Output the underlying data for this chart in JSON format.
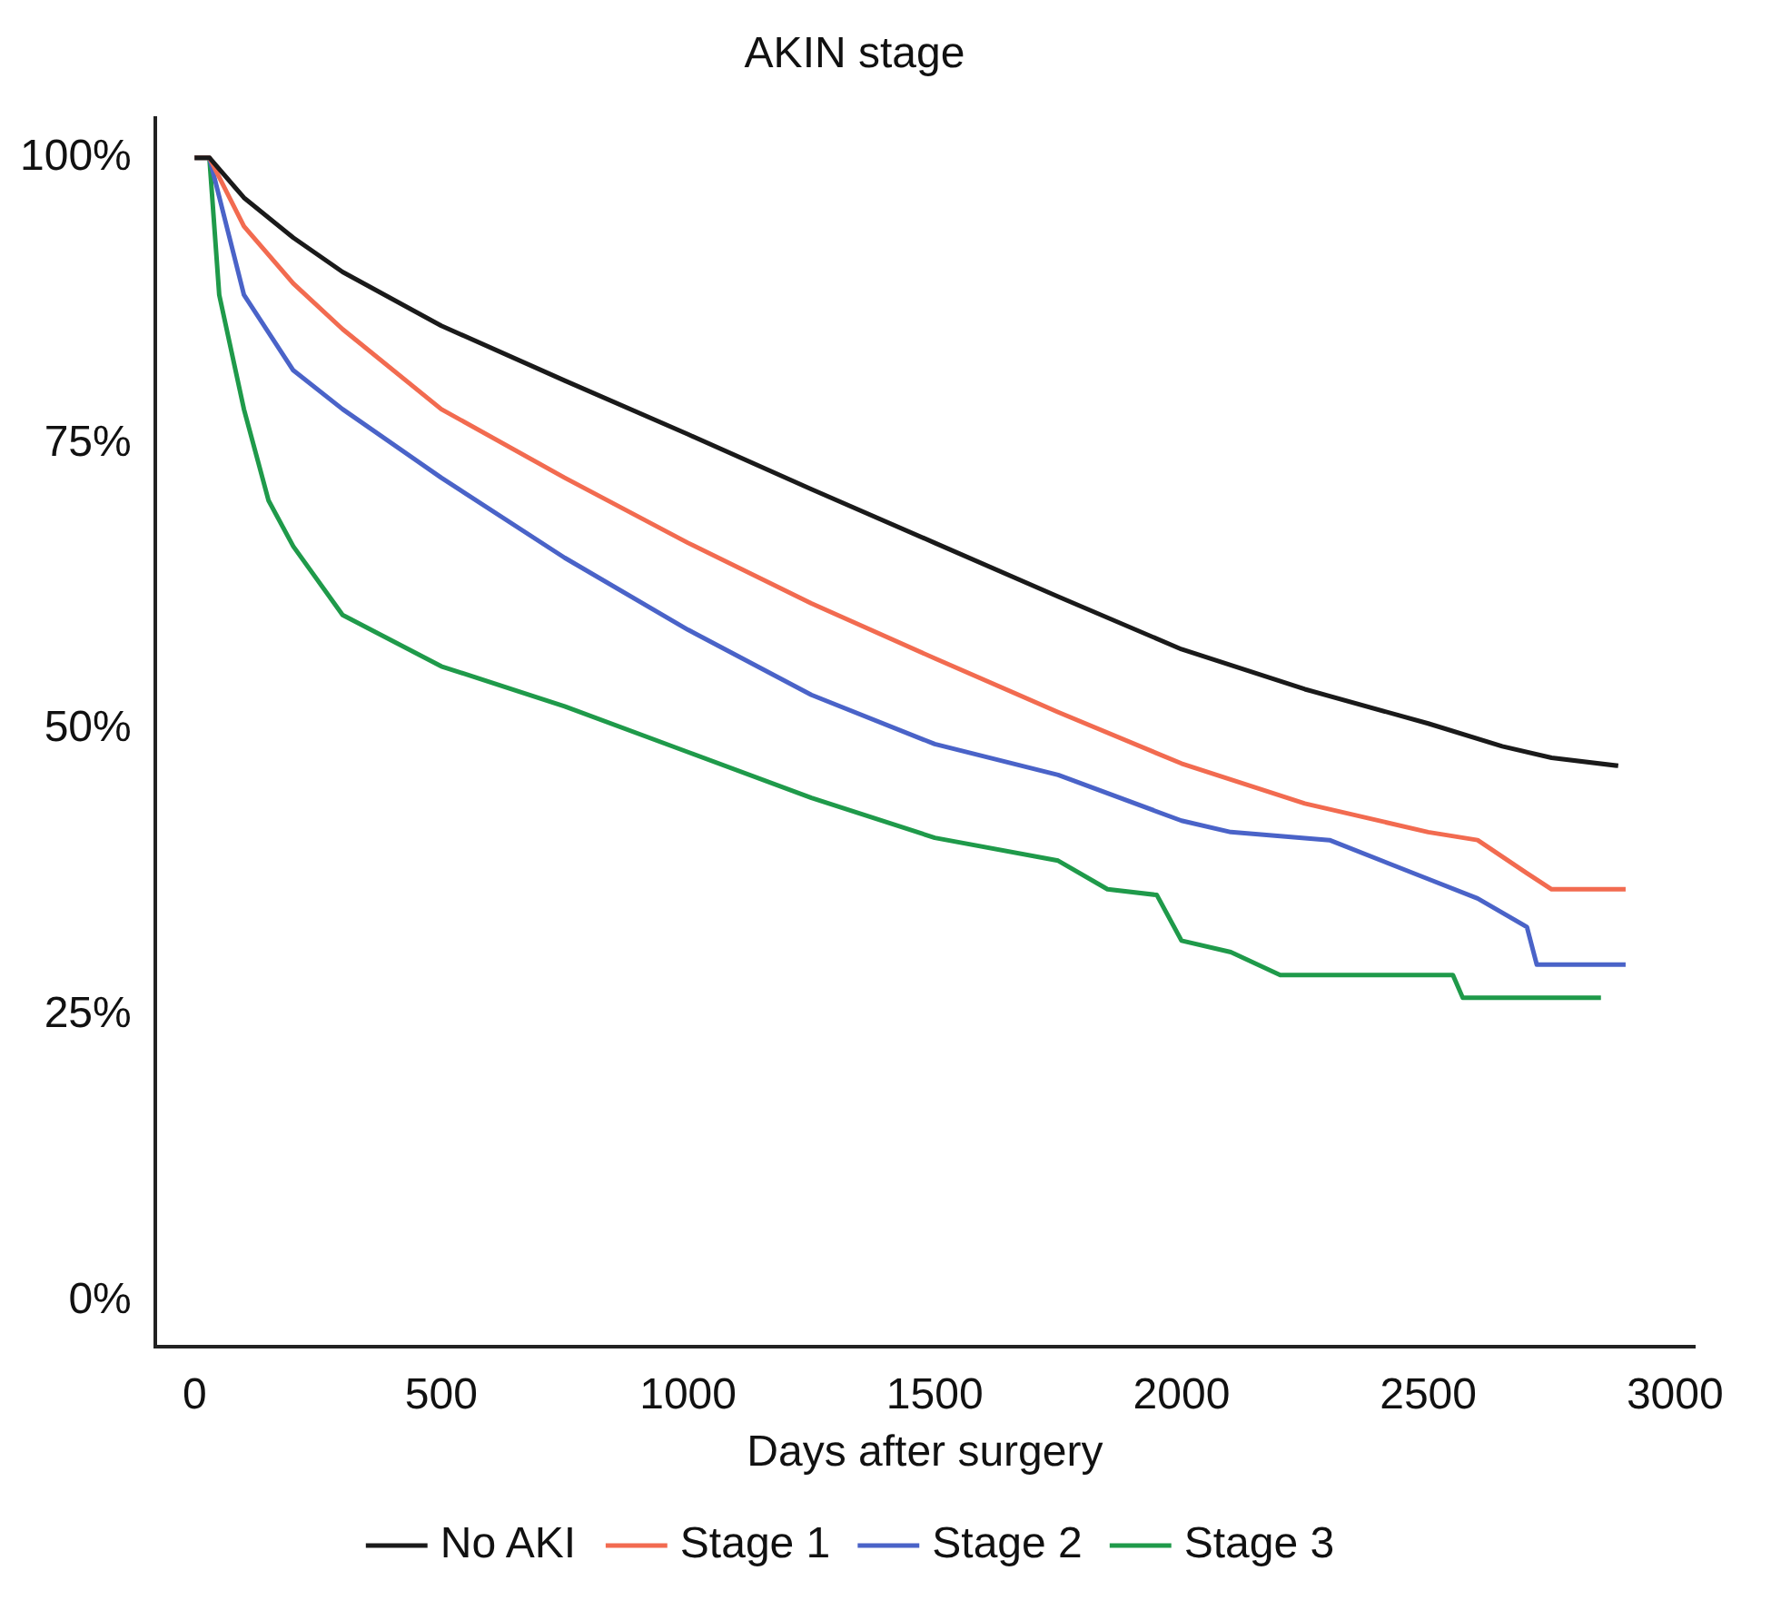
{
  "chart_data": {
    "type": "line",
    "title": "AKIN stage",
    "xlabel": "Days after surgery",
    "xlim": [
      -80,
      3040
    ],
    "xticks": [
      0,
      500,
      1000,
      1500,
      2000,
      2500,
      3000
    ],
    "ylim": [
      -4,
      103.5
    ],
    "yticks": [
      {
        "value": 0,
        "label": "0%"
      },
      {
        "value": 25,
        "label": "25%"
      },
      {
        "value": 50,
        "label": "50%"
      },
      {
        "value": 75,
        "label": "75%"
      },
      {
        "value": 100,
        "label": "100%"
      }
    ],
    "grid": false,
    "legend": "bottom",
    "marker": "none",
    "line_style": "solid",
    "series": [
      {
        "name": "No AKI",
        "color": "#1a1a1a",
        "x": [
          0,
          30,
          100,
          200,
          300,
          500,
          750,
          1000,
          1250,
          1500,
          1750,
          2000,
          2250,
          2500,
          2650,
          2750,
          2885
        ],
        "values": [
          100,
          100,
          96.5,
          93,
          90,
          85.3,
          80.5,
          75.8,
          71,
          66.3,
          61.6,
          57,
          53.5,
          50.5,
          48.5,
          47.5,
          46.8
        ]
      },
      {
        "name": "Stage 1",
        "color": "#f26b50",
        "x": [
          0,
          30,
          100,
          200,
          300,
          500,
          750,
          1000,
          1250,
          1500,
          1750,
          2000,
          2250,
          2500,
          2600,
          2700,
          2750,
          2900
        ],
        "values": [
          100,
          100,
          94,
          89,
          85,
          78,
          72,
          66.3,
          61,
          56.2,
          51.5,
          47,
          43.5,
          41,
          40.3,
          37.4,
          36,
          36
        ]
      },
      {
        "name": "Stage 2",
        "color": "#4a63c8",
        "x": [
          0,
          30,
          100,
          200,
          300,
          500,
          750,
          1000,
          1250,
          1500,
          1750,
          2000,
          2100,
          2300,
          2500,
          2600,
          2700,
          2720,
          2900
        ],
        "values": [
          100,
          100,
          88,
          81.4,
          78,
          72,
          65,
          58.7,
          53,
          48.7,
          46,
          42,
          41,
          40.3,
          36.9,
          35.2,
          32.7,
          29.4,
          29.4
        ]
      },
      {
        "name": "Stage 3",
        "color": "#1f9a4a",
        "x": [
          0,
          30,
          50,
          100,
          150,
          200,
          300,
          500,
          750,
          1000,
          1250,
          1500,
          1750,
          1850,
          1950,
          2000,
          2100,
          2200,
          2550,
          2570,
          2850
        ],
        "values": [
          100,
          100,
          88,
          78,
          70,
          66,
          60,
          55.5,
          52,
          48,
          44,
          40.5,
          38.5,
          36,
          35.5,
          31.5,
          30.5,
          28.5,
          28.5,
          26.5,
          26.5
        ]
      }
    ]
  }
}
